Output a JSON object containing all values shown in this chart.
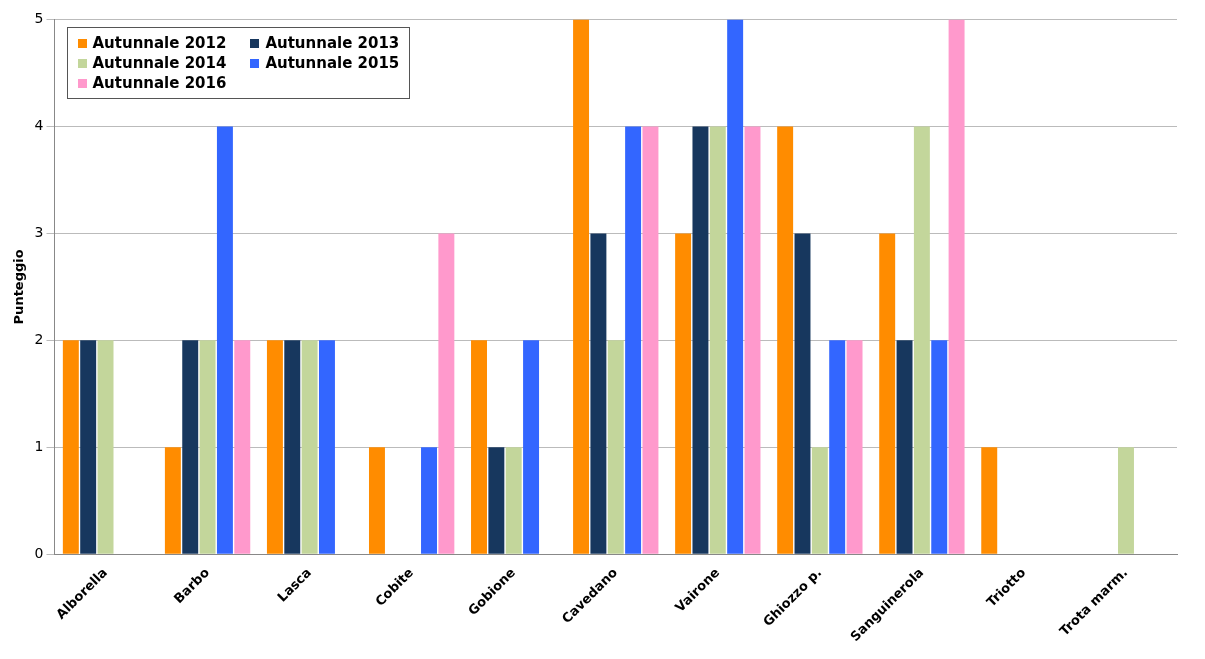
{
  "chart_data": {
    "type": "bar",
    "ylabel": "Punteggio",
    "categories": [
      "Alborella",
      "Barbo",
      "Lasca",
      "Cobite",
      "Gobione",
      "Cavedano",
      "Vairone",
      "Ghiozzo p.",
      "Sanguinerola",
      "Triotto",
      "Trota marm."
    ],
    "series": [
      {
        "name": "Autunnale 2012",
        "color": "#ff8c00",
        "values": [
          2,
          1,
          2,
          1,
          2,
          5,
          3,
          4,
          3,
          1,
          0
        ]
      },
      {
        "name": "Autunnale 2013",
        "color": "#17375e",
        "values": [
          2,
          2,
          2,
          0,
          1,
          3,
          4,
          3,
          2,
          0,
          0
        ]
      },
      {
        "name": "Autunnale 2014",
        "color": "#c3d69b",
        "values": [
          2,
          2,
          2,
          0,
          1,
          2,
          4,
          1,
          4,
          0,
          1
        ]
      },
      {
        "name": "Autunnale 2015",
        "color": "#3366ff",
        "values": [
          0,
          4,
          2,
          1,
          2,
          4,
          5,
          2,
          2,
          0,
          0
        ]
      },
      {
        "name": "Autunnale 2016",
        "color": "#ff99cc",
        "values": [
          0,
          2,
          0,
          3,
          0,
          4,
          4,
          2,
          5,
          0,
          0
        ]
      }
    ],
    "ylim": [
      0,
      5
    ],
    "yticks": [
      0,
      1,
      2,
      3,
      4,
      5
    ],
    "grid": "y",
    "legend": "top left"
  }
}
